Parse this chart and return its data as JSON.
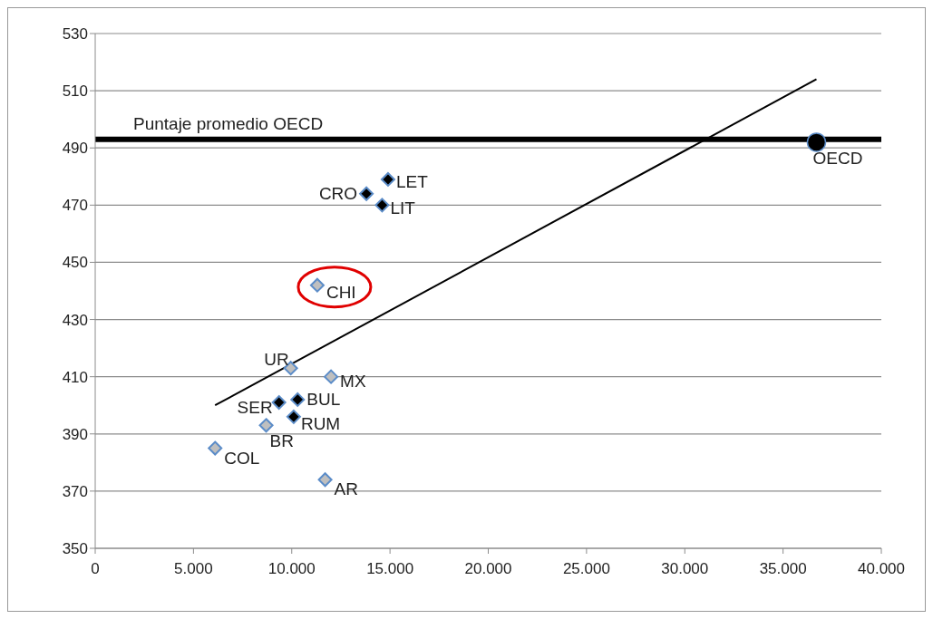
{
  "chart_data": {
    "type": "scatter",
    "series": [
      {
        "color": "#bfbfbf",
        "marker": "diamond",
        "x": [
          11300,
          9950,
          12000,
          8700,
          6100,
          11700
        ],
        "values": [
          442,
          413,
          410,
          393,
          385,
          374
        ]
      },
      {
        "color": "#000000",
        "marker": "diamond",
        "x": [
          14900,
          13800,
          14600,
          9350,
          10300,
          10100
        ],
        "values": [
          479,
          474,
          470,
          401,
          402,
          396
        ]
      },
      {
        "color": "#000000",
        "marker": "circle",
        "x": [
          36700
        ],
        "values": [
          492
        ]
      },
      {
        "type": "line",
        "color": "#000000",
        "x": [
          6100,
          36700
        ],
        "values": [
          400,
          514
        ]
      }
    ],
    "xlim": [
      0,
      40000
    ],
    "xticks": [
      0,
      {
        "value": 5000,
        "label": "5.000"
      },
      {
        "value": 10000,
        "label": "10.000"
      },
      {
        "value": 15000,
        "label": "15.000"
      },
      {
        "value": 20000,
        "label": "20.000"
      },
      {
        "value": 25000,
        "label": "25.000"
      },
      {
        "value": 30000,
        "label": "30.000"
      },
      {
        "value": 35000,
        "label": "35.000"
      },
      {
        "value": 40000,
        "label": "40.000"
      }
    ],
    "ylim": [
      350,
      530
    ],
    "yticks": [
      350,
      370,
      390,
      410,
      430,
      450,
      470,
      490,
      510,
      530
    ],
    "grid": "y",
    "ref_lines": [
      {
        "axis": "y",
        "value": 493,
        "label": "Puntaje promedio OECD",
        "color": "#000000"
      }
    ],
    "annotations": [
      {
        "text": "LET",
        "x": 14900,
        "y": 479
      },
      {
        "text": "CRO",
        "x": 13800,
        "y": 474
      },
      {
        "text": "LIT",
        "x": 14600,
        "y": 470
      },
      {
        "text": "CHI",
        "x": 11300,
        "y": 442
      },
      {
        "text": "UR",
        "x": 9950,
        "y": 413
      },
      {
        "text": "MX",
        "x": 12000,
        "y": 410
      },
      {
        "text": "SER",
        "x": 9350,
        "y": 401
      },
      {
        "text": "BUL",
        "x": 10300,
        "y": 402
      },
      {
        "text": "RUM",
        "x": 10100,
        "y": 396
      },
      {
        "text": "BR",
        "x": 8700,
        "y": 393
      },
      {
        "text": "COL",
        "x": 6100,
        "y": 385
      },
      {
        "text": "AR",
        "x": 11700,
        "y": 374
      },
      {
        "text": "OECD",
        "x": 36700,
        "y": 492
      }
    ]
  }
}
